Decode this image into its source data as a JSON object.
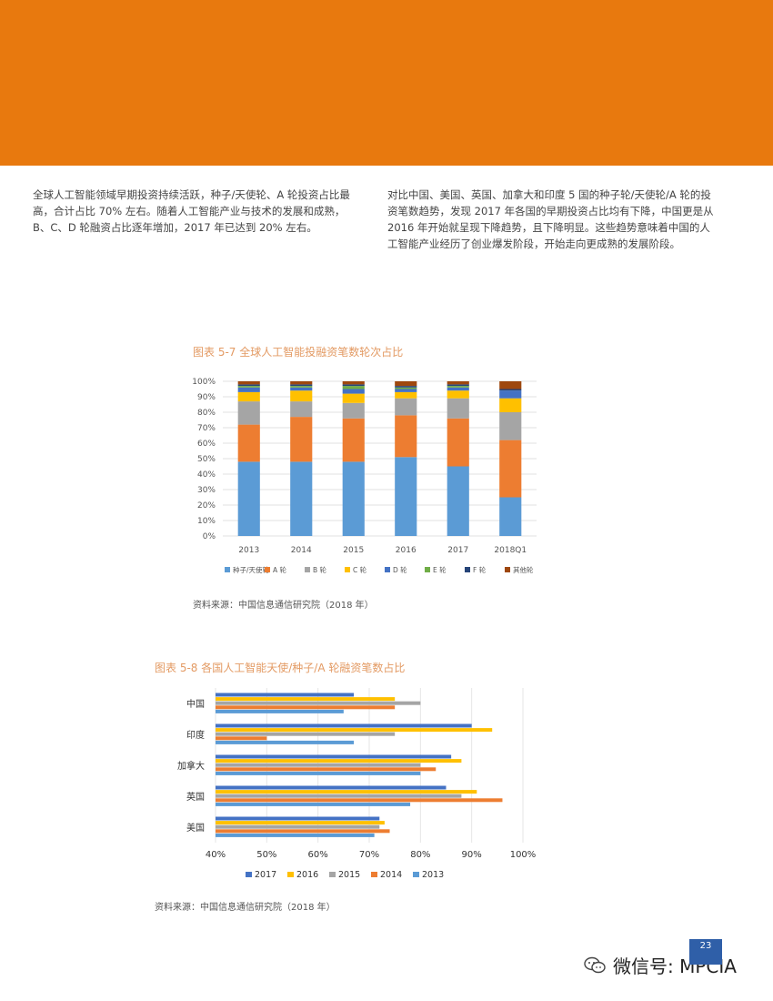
{
  "paragraphs": {
    "left": "全球人工智能领域早期投资持续活跃，种子/天使轮、A 轮投资占比最高，合计占比 70% 左右。随着人工智能产业与技术的发展和成熟，B、C、D 轮融资占比逐年增加，2017 年已达到 20% 左右。",
    "right": "对比中国、美国、英国、加拿大和印度 5 国的种子轮/天使轮/A 轮的投资笔数趋势，发现 2017 年各国的早期投资占比均有下降，中国更是从 2016 年开始就呈现下降趋势，且下降明显。这些趋势意味着中国的人工智能产业经历了创业爆发阶段，开始走向更成熟的发展阶段。"
  },
  "chart1": {
    "title": "图表 5-7 全球人工智能投融资笔数轮次占比",
    "source": "资料来源：中国信息通信研究院（2018 年）"
  },
  "chart2": {
    "title": "图表 5-8 各国人工智能天使/种子/A 轮融资笔数占比",
    "source": "资料来源：中国信息通信研究院（2018 年）"
  },
  "page_number": "23",
  "watermark": "微信号: MPCIA",
  "chart_data": [
    {
      "type": "bar",
      "stacked": true,
      "orientation": "vertical",
      "title": "图表 5-7 全球人工智能投融资笔数轮次占比",
      "categories": [
        "2013",
        "2014",
        "2015",
        "2016",
        "2017",
        "2018Q1"
      ],
      "ylim": [
        0,
        100
      ],
      "yticks": [
        0,
        10,
        20,
        30,
        40,
        50,
        60,
        70,
        80,
        90,
        100
      ],
      "ytick_suffix": "%",
      "legend_position": "bottom",
      "series": [
        {
          "name": "种子/天使轮",
          "color": "#5b9bd5",
          "values": [
            48,
            48,
            48,
            51,
            45,
            25
          ]
        },
        {
          "name": "A 轮",
          "color": "#ed7d31",
          "values": [
            24,
            29,
            28,
            27,
            31,
            37
          ]
        },
        {
          "name": "B 轮",
          "color": "#a5a5a5",
          "values": [
            15,
            10,
            10,
            11,
            13,
            18
          ]
        },
        {
          "name": "C 轮",
          "color": "#ffc000",
          "values": [
            6,
            7,
            6,
            4,
            5,
            9
          ]
        },
        {
          "name": "D 轮",
          "color": "#4472c4",
          "values": [
            3,
            2,
            3,
            2,
            2,
            5
          ]
        },
        {
          "name": "E 轮",
          "color": "#70ad47",
          "values": [
            1,
            1,
            2,
            1,
            1,
            0
          ]
        },
        {
          "name": "F 轮",
          "color": "#264478",
          "values": [
            1,
            1,
            1,
            1,
            1,
            1
          ]
        },
        {
          "name": "其他轮",
          "color": "#9e480e",
          "values": [
            2,
            2,
            2,
            3,
            2,
            5
          ]
        }
      ]
    },
    {
      "type": "bar",
      "orientation": "horizontal",
      "title": "图表 5-8 各国人工智能天使/种子/A 轮融资笔数占比",
      "categories": [
        "中国",
        "印度",
        "加拿大",
        "英国",
        "美国"
      ],
      "xlim": [
        40,
        100
      ],
      "xticks": [
        40,
        50,
        60,
        70,
        80,
        90,
        100
      ],
      "xtick_suffix": "%",
      "legend_position": "bottom",
      "series": [
        {
          "name": "2017",
          "color": "#4472c4",
          "values": [
            67,
            90,
            86,
            85,
            72
          ]
        },
        {
          "name": "2016",
          "color": "#ffc000",
          "values": [
            75,
            94,
            88,
            91,
            73
          ]
        },
        {
          "name": "2015",
          "color": "#a5a5a5",
          "values": [
            80,
            75,
            80,
            88,
            72
          ]
        },
        {
          "name": "2014",
          "color": "#ed7d31",
          "values": [
            75,
            50,
            83,
            96,
            74
          ]
        },
        {
          "name": "2013",
          "color": "#5b9bd5",
          "values": [
            65,
            67,
            80,
            78,
            71
          ]
        }
      ]
    }
  ]
}
